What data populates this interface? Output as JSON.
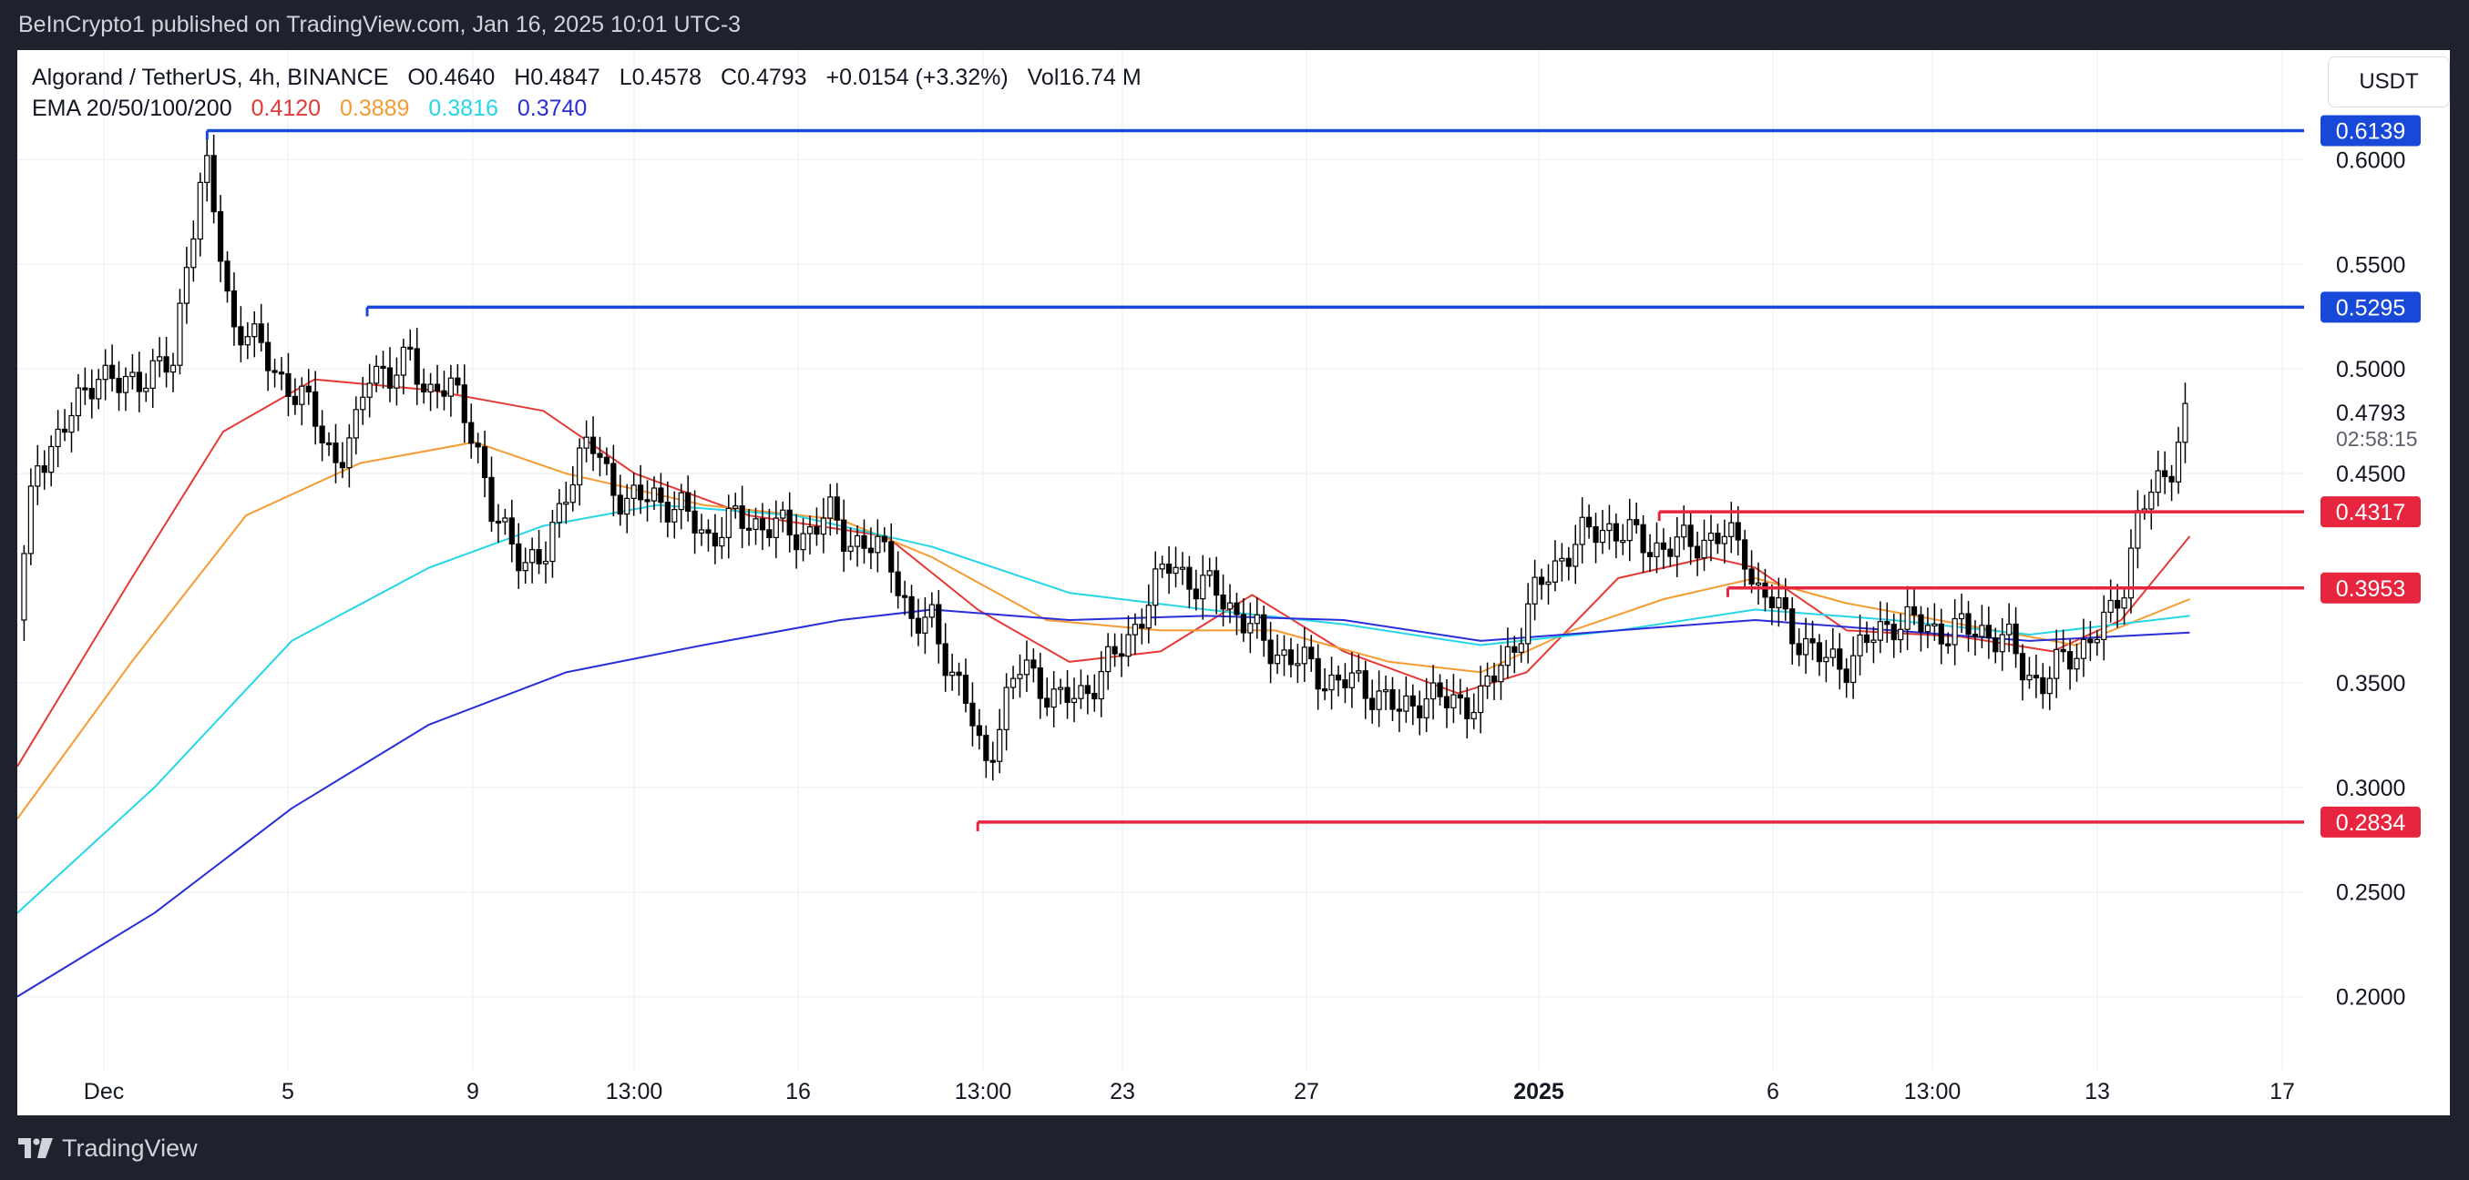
{
  "header": {
    "published_text": "BeInCrypto1 published on TradingView.com, Jan 16, 2025 10:01 UTC-3"
  },
  "legend": {
    "symbol": "Algorand / TetherUS, 4h, BINANCE",
    "open": "O0.4640",
    "high": "H0.4847",
    "low": "L0.4578",
    "close": "C0.4793",
    "change": "+0.0154 (+3.32%)",
    "volume": "Vol16.74 M",
    "ema_label": "EMA 20/50/100/200",
    "ema20": "0.4120",
    "ema50": "0.3889",
    "ema100": "0.3816",
    "ema200": "0.3740"
  },
  "currency_button": "USDT",
  "footer": {
    "brand": "TradingView"
  },
  "colors": {
    "ema20": "#e53935",
    "ema50": "#f59b31",
    "ema100": "#26d6e6",
    "ema200": "#2a2ed8",
    "resistance": "#1848d8",
    "support": "#e8253f",
    "candle": "#000000"
  },
  "chart_data": {
    "type": "candlestick",
    "title": "",
    "xlabel": "",
    "ylabel": "",
    "ylim": [
      0.165,
      0.635
    ],
    "grid": true,
    "y_ticks": [
      "0.6000",
      "0.5500",
      "0.5000",
      "0.4500",
      "0.3500",
      "0.3000",
      "0.2500",
      "0.2000"
    ],
    "x_ticks": [
      "Dec",
      "5",
      "9",
      "13:00",
      "16",
      "13:00",
      "23",
      "27",
      "2025",
      "6",
      "13:00",
      "13",
      "17"
    ],
    "last_price": {
      "value": "0.4793",
      "countdown": "02:58:15"
    },
    "levels": [
      {
        "label": "0.6139",
        "value": 0.6139,
        "kind": "resistance",
        "from": 0.083
      },
      {
        "label": "0.5295",
        "value": 0.5295,
        "kind": "resistance",
        "from": 0.153
      },
      {
        "label": "0.4317",
        "value": 0.4317,
        "kind": "support",
        "from": 0.718
      },
      {
        "label": "0.3953",
        "value": 0.3953,
        "kind": "support",
        "from": 0.748
      },
      {
        "label": "0.2834",
        "value": 0.2834,
        "kind": "support",
        "from": 0.42
      }
    ],
    "price_path": [
      [
        0.0,
        0.38
      ],
      [
        0.008,
        0.455
      ],
      [
        0.02,
        0.47
      ],
      [
        0.035,
        0.5
      ],
      [
        0.045,
        0.49
      ],
      [
        0.058,
        0.5
      ],
      [
        0.068,
        0.5
      ],
      [
        0.075,
        0.56
      ],
      [
        0.082,
        0.6
      ],
      [
        0.088,
        0.56
      ],
      [
        0.094,
        0.52
      ],
      [
        0.1,
        0.52
      ],
      [
        0.108,
        0.505
      ],
      [
        0.116,
        0.495
      ],
      [
        0.125,
        0.485
      ],
      [
        0.133,
        0.47
      ],
      [
        0.14,
        0.455
      ],
      [
        0.148,
        0.47
      ],
      [
        0.155,
        0.505
      ],
      [
        0.163,
        0.495
      ],
      [
        0.172,
        0.505
      ],
      [
        0.18,
        0.49
      ],
      [
        0.19,
        0.49
      ],
      [
        0.2,
        0.47
      ],
      [
        0.207,
        0.43
      ],
      [
        0.214,
        0.42
      ],
      [
        0.222,
        0.41
      ],
      [
        0.23,
        0.405
      ],
      [
        0.24,
        0.445
      ],
      [
        0.25,
        0.465
      ],
      [
        0.258,
        0.45
      ],
      [
        0.266,
        0.435
      ],
      [
        0.278,
        0.44
      ],
      [
        0.29,
        0.432
      ],
      [
        0.302,
        0.42
      ],
      [
        0.315,
        0.428
      ],
      [
        0.33,
        0.425
      ],
      [
        0.342,
        0.42
      ],
      [
        0.355,
        0.43
      ],
      [
        0.362,
        0.42
      ],
      [
        0.372,
        0.415
      ],
      [
        0.382,
        0.41
      ],
      [
        0.392,
        0.375
      ],
      [
        0.4,
        0.38
      ],
      [
        0.407,
        0.36
      ],
      [
        0.415,
        0.34
      ],
      [
        0.423,
        0.31
      ],
      [
        0.432,
        0.34
      ],
      [
        0.44,
        0.36
      ],
      [
        0.447,
        0.35
      ],
      [
        0.455,
        0.34
      ],
      [
        0.465,
        0.345
      ],
      [
        0.475,
        0.355
      ],
      [
        0.485,
        0.37
      ],
      [
        0.495,
        0.39
      ],
      [
        0.505,
        0.41
      ],
      [
        0.515,
        0.395
      ],
      [
        0.525,
        0.395
      ],
      [
        0.535,
        0.38
      ],
      [
        0.545,
        0.37
      ],
      [
        0.555,
        0.362
      ],
      [
        0.565,
        0.358
      ],
      [
        0.575,
        0.35
      ],
      [
        0.585,
        0.35
      ],
      [
        0.595,
        0.345
      ],
      [
        0.605,
        0.335
      ],
      [
        0.615,
        0.345
      ],
      [
        0.625,
        0.34
      ],
      [
        0.64,
        0.342
      ],
      [
        0.655,
        0.37
      ],
      [
        0.665,
        0.395
      ],
      [
        0.675,
        0.41
      ],
      [
        0.685,
        0.42
      ],
      [
        0.695,
        0.425
      ],
      [
        0.705,
        0.42
      ],
      [
        0.715,
        0.415
      ],
      [
        0.725,
        0.415
      ],
      [
        0.735,
        0.418
      ],
      [
        0.745,
        0.42
      ],
      [
        0.755,
        0.415
      ],
      [
        0.76,
        0.395
      ],
      [
        0.77,
        0.385
      ],
      [
        0.78,
        0.37
      ],
      [
        0.79,
        0.36
      ],
      [
        0.8,
        0.36
      ],
      [
        0.81,
        0.37
      ],
      [
        0.82,
        0.38
      ],
      [
        0.83,
        0.378
      ],
      [
        0.84,
        0.375
      ],
      [
        0.85,
        0.375
      ],
      [
        0.86,
        0.375
      ],
      [
        0.87,
        0.37
      ],
      [
        0.878,
        0.355
      ],
      [
        0.885,
        0.35
      ],
      [
        0.895,
        0.36
      ],
      [
        0.905,
        0.37
      ],
      [
        0.915,
        0.38
      ],
      [
        0.922,
        0.4
      ],
      [
        0.928,
        0.435
      ],
      [
        0.935,
        0.44
      ],
      [
        0.942,
        0.455
      ],
      [
        0.948,
        0.4793
      ]
    ],
    "ema": [
      {
        "name": "EMA 20",
        "points": [
          [
            0.0,
            0.31
          ],
          [
            0.05,
            0.4
          ],
          [
            0.09,
            0.47
          ],
          [
            0.13,
            0.495
          ],
          [
            0.18,
            0.49
          ],
          [
            0.23,
            0.48
          ],
          [
            0.27,
            0.45
          ],
          [
            0.32,
            0.43
          ],
          [
            0.38,
            0.42
          ],
          [
            0.42,
            0.385
          ],
          [
            0.46,
            0.36
          ],
          [
            0.5,
            0.365
          ],
          [
            0.54,
            0.392
          ],
          [
            0.58,
            0.365
          ],
          [
            0.63,
            0.345
          ],
          [
            0.66,
            0.355
          ],
          [
            0.7,
            0.4
          ],
          [
            0.74,
            0.41
          ],
          [
            0.76,
            0.405
          ],
          [
            0.8,
            0.375
          ],
          [
            0.85,
            0.372
          ],
          [
            0.89,
            0.365
          ],
          [
            0.92,
            0.38
          ],
          [
            0.95,
            0.42
          ]
        ]
      },
      {
        "name": "EMA 50",
        "points": [
          [
            0.0,
            0.285
          ],
          [
            0.05,
            0.36
          ],
          [
            0.1,
            0.43
          ],
          [
            0.15,
            0.455
          ],
          [
            0.2,
            0.465
          ],
          [
            0.24,
            0.45
          ],
          [
            0.3,
            0.435
          ],
          [
            0.36,
            0.428
          ],
          [
            0.4,
            0.41
          ],
          [
            0.45,
            0.38
          ],
          [
            0.5,
            0.375
          ],
          [
            0.55,
            0.375
          ],
          [
            0.6,
            0.36
          ],
          [
            0.64,
            0.355
          ],
          [
            0.68,
            0.375
          ],
          [
            0.72,
            0.39
          ],
          [
            0.76,
            0.4
          ],
          [
            0.8,
            0.388
          ],
          [
            0.85,
            0.378
          ],
          [
            0.9,
            0.368
          ],
          [
            0.95,
            0.39
          ]
        ]
      },
      {
        "name": "EMA 100",
        "points": [
          [
            0.0,
            0.24
          ],
          [
            0.06,
            0.3
          ],
          [
            0.12,
            0.37
          ],
          [
            0.18,
            0.405
          ],
          [
            0.23,
            0.425
          ],
          [
            0.28,
            0.435
          ],
          [
            0.34,
            0.43
          ],
          [
            0.4,
            0.415
          ],
          [
            0.46,
            0.393
          ],
          [
            0.52,
            0.385
          ],
          [
            0.58,
            0.378
          ],
          [
            0.64,
            0.368
          ],
          [
            0.7,
            0.375
          ],
          [
            0.76,
            0.385
          ],
          [
            0.82,
            0.38
          ],
          [
            0.88,
            0.373
          ],
          [
            0.95,
            0.382
          ]
        ]
      },
      {
        "name": "EMA 200",
        "points": [
          [
            0.0,
            0.2
          ],
          [
            0.06,
            0.24
          ],
          [
            0.12,
            0.29
          ],
          [
            0.18,
            0.33
          ],
          [
            0.24,
            0.355
          ],
          [
            0.3,
            0.368
          ],
          [
            0.36,
            0.38
          ],
          [
            0.4,
            0.385
          ],
          [
            0.46,
            0.38
          ],
          [
            0.52,
            0.382
          ],
          [
            0.58,
            0.38
          ],
          [
            0.64,
            0.37
          ],
          [
            0.7,
            0.375
          ],
          [
            0.76,
            0.38
          ],
          [
            0.82,
            0.375
          ],
          [
            0.88,
            0.37
          ],
          [
            0.95,
            0.374
          ]
        ]
      }
    ]
  }
}
